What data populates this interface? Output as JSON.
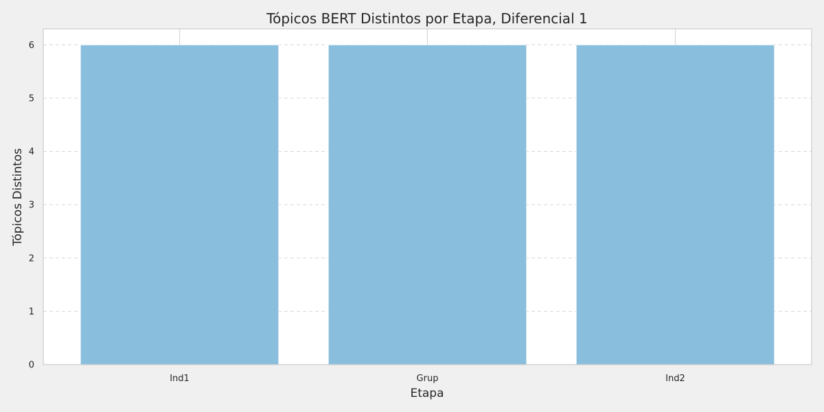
{
  "chart_data": {
    "type": "bar",
    "title": "Tópicos BERT Distintos por Etapa, Diferencial 1",
    "xlabel": "Etapa",
    "ylabel": "Tópicos Distintos",
    "categories": [
      "Ind1",
      "Grup",
      "Ind2"
    ],
    "values": [
      6,
      6,
      6
    ],
    "ylim": [
      0,
      6.3
    ],
    "yticks": [
      0,
      1,
      2,
      3,
      4,
      5,
      6
    ],
    "grid": "y-dashed",
    "bar_color": "#89bedc",
    "plot_background": "#ffffff",
    "figure_background": "#f0f0f0"
  }
}
